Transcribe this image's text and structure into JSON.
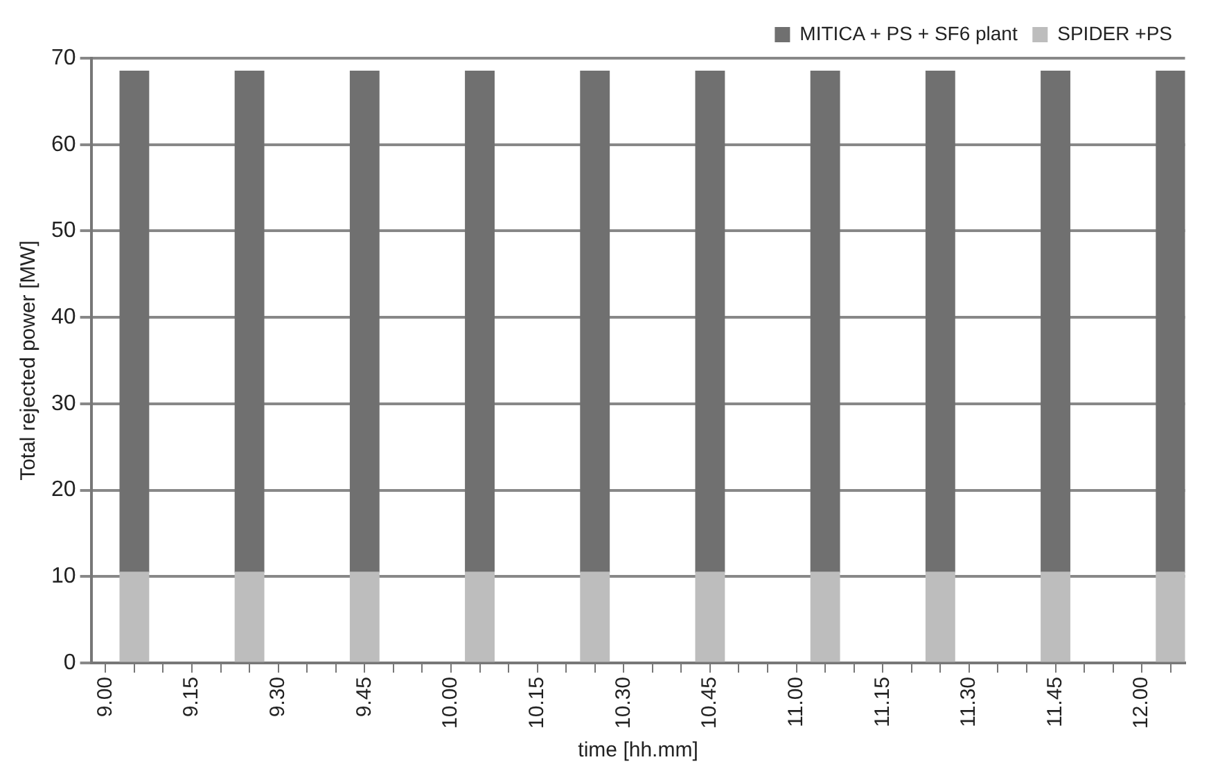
{
  "chart_data": {
    "type": "bar",
    "stacked": true,
    "xlabel": "time [hh.mm]",
    "ylabel": "Total rejected power [MW]",
    "categories": [
      "9.00",
      null,
      null,
      "9.15",
      null,
      null,
      "9.30",
      null,
      null,
      "9.45",
      null,
      null,
      "10.00",
      null,
      null,
      "10.15",
      null,
      null,
      "10.30",
      null,
      null,
      "10.45",
      null,
      null,
      "11.00",
      null,
      null,
      "11.15",
      null,
      null,
      "11.30",
      null,
      null,
      "11.45",
      null,
      null,
      "12.00",
      null
    ],
    "series": [
      {
        "name": "SPIDER +PS",
        "color": "#bdbdbd",
        "values": [
          null,
          10.5,
          null,
          null,
          null,
          10.5,
          null,
          null,
          null,
          10.5,
          null,
          null,
          null,
          10.5,
          null,
          null,
          null,
          10.5,
          null,
          null,
          null,
          10.5,
          null,
          null,
          null,
          10.5,
          null,
          null,
          null,
          10.5,
          null,
          null,
          null,
          10.5,
          null,
          null,
          null,
          10.5
        ]
      },
      {
        "name": "MITICA + PS + SF6 plant",
        "color": "#707070",
        "values": [
          null,
          58,
          null,
          null,
          null,
          58,
          null,
          null,
          null,
          58,
          null,
          null,
          null,
          58,
          null,
          null,
          null,
          58,
          null,
          null,
          null,
          58,
          null,
          null,
          null,
          58,
          null,
          null,
          null,
          58,
          null,
          null,
          null,
          58,
          null,
          null,
          null,
          58
        ]
      }
    ],
    "ylim": [
      0,
      70
    ],
    "yticks": [
      0,
      10,
      20,
      30,
      40,
      50,
      60,
      70
    ],
    "grid": "y",
    "legend": "top right"
  }
}
